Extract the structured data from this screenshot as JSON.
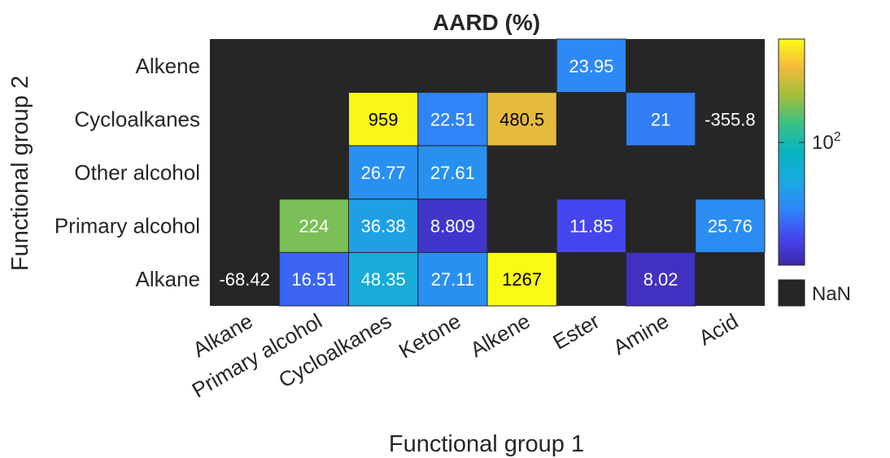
{
  "chart_data": {
    "type": "heatmap",
    "title": "AARD (%)",
    "xlabel": "Functional group 1",
    "ylabel": "Functional group 2",
    "x_categories": [
      "Alkane",
      "Primary alcohol",
      "Cycloalkanes",
      "Ketone",
      "Alkene",
      "Ester",
      "Amine",
      "Acid"
    ],
    "y_categories": [
      "Alkene",
      "Cycloalkanes",
      "Other alcohol",
      "Primary alcohol",
      "Alkane"
    ],
    "values": [
      [
        null,
        null,
        null,
        null,
        null,
        23.95,
        null,
        null
      ],
      [
        null,
        null,
        959,
        22.51,
        480.5,
        null,
        21,
        -355.8
      ],
      [
        null,
        null,
        26.77,
        27.61,
        null,
        null,
        null,
        null
      ],
      [
        null,
        224,
        36.38,
        8.809,
        null,
        11.85,
        null,
        25.76
      ],
      [
        -68.42,
        16.51,
        48.35,
        27.11,
        1267,
        null,
        8.02,
        null
      ]
    ],
    "value_labels": [
      [
        "",
        "",
        "",
        "",
        "",
        "23.95",
        "",
        ""
      ],
      [
        "",
        "",
        "959",
        "22.51",
        "480.5",
        "",
        "21",
        "-355.8"
      ],
      [
        "",
        "",
        "26.77",
        "27.61",
        "",
        "",
        "",
        ""
      ],
      [
        "",
        "224",
        "36.38",
        "8.809",
        "",
        "11.85",
        "",
        "25.76"
      ],
      [
        "-68.42",
        "16.51",
        "48.35",
        "27.11",
        "1267",
        "",
        "8.02",
        ""
      ]
    ],
    "color_scale": "log",
    "colormap": "parula",
    "color_limits": [
      6.5,
      1000
    ],
    "colorbar_tick_label": "10^2",
    "colorbar_tick_value": 100,
    "nan_label": "NaN",
    "nan_color": "#262626",
    "negative_color": "#262626"
  }
}
